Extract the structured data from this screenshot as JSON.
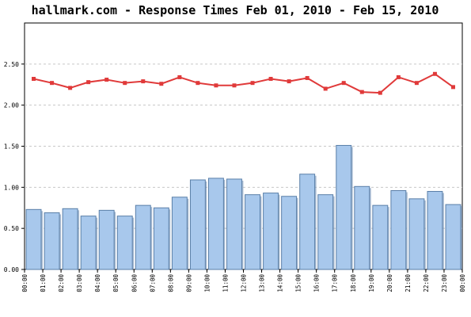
{
  "chart_data": {
    "type": "bar",
    "title": "hallmark.com - Response Times Feb 01, 2010 - Feb 15, 2010",
    "xlabel": "",
    "ylabel": "",
    "ylim": [
      0,
      3.0
    ],
    "y_ticks": [
      "0.00",
      "0.50",
      "1.00",
      "1.50",
      "2.00",
      "2.50"
    ],
    "grid": true,
    "categories": [
      "00:00",
      "01:00",
      "02:00",
      "03:00",
      "04:00",
      "05:00",
      "06:00",
      "07:00",
      "08:00",
      "09:00",
      "10:00",
      "11:00",
      "12:00",
      "13:00",
      "14:00",
      "15:00",
      "16:00",
      "17:00",
      "18:00",
      "19:00",
      "20:00",
      "21:00",
      "22:00",
      "23:00"
    ],
    "x_tick_labels": [
      "00:00",
      "01:00",
      "02:00",
      "03:00",
      "04:00",
      "05:00",
      "06:00",
      "07:00",
      "08:00",
      "09:00",
      "10:00",
      "11:00",
      "12:00",
      "13:00",
      "14:00",
      "15:00",
      "16:00",
      "17:00",
      "18:00",
      "19:00",
      "20:00",
      "21:00",
      "22:00",
      "23:00",
      "00:00"
    ],
    "series": [
      {
        "type": "bar",
        "color": "#a8c8ec",
        "values": [
          0.73,
          0.69,
          0.74,
          0.65,
          0.72,
          0.65,
          0.78,
          0.75,
          0.88,
          1.09,
          1.11,
          1.1,
          0.91,
          0.93,
          0.89,
          1.16,
          0.91,
          1.51,
          1.01,
          0.78,
          0.96,
          0.86,
          0.95,
          0.79
        ]
      },
      {
        "type": "line",
        "color": "#e03a3a",
        "values": [
          2.32,
          2.27,
          2.21,
          2.28,
          2.31,
          2.27,
          2.29,
          2.26,
          2.34,
          2.27,
          2.24,
          2.24,
          2.27,
          2.32,
          2.29,
          2.33,
          2.2,
          2.27,
          2.16,
          2.15,
          2.34,
          2.27,
          2.38,
          2.22
        ]
      }
    ]
  }
}
